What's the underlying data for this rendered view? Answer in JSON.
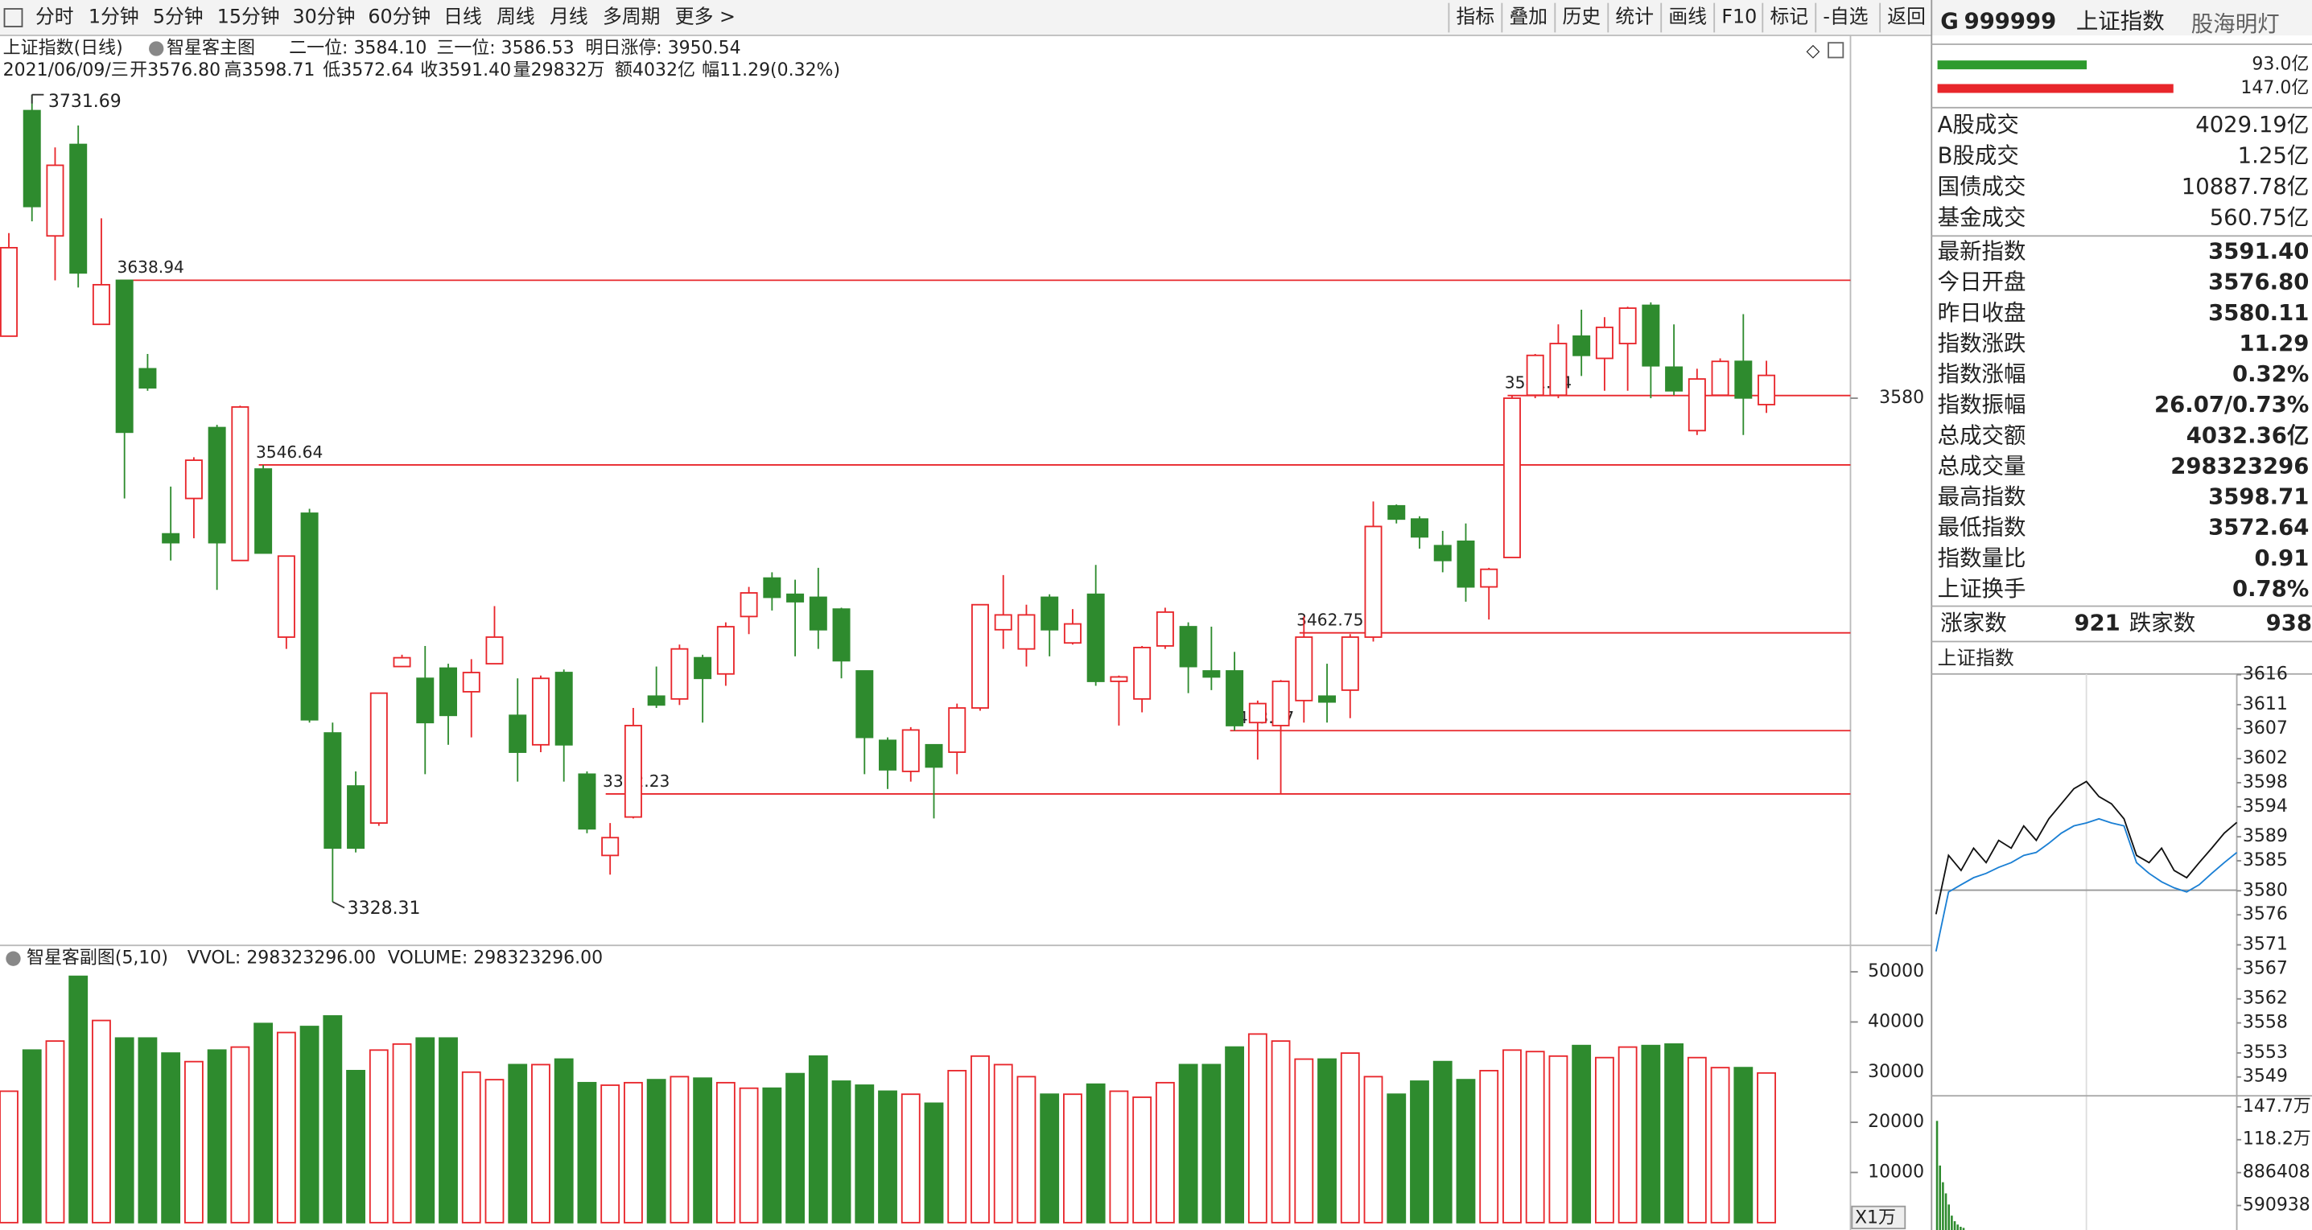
{
  "toolbar": {
    "left": [
      "分时",
      "1分钟",
      "5分钟",
      "15分钟",
      "30分钟",
      "60分钟",
      "日线",
      "周线",
      "月线",
      "多周期",
      "更多 >"
    ],
    "active": 6,
    "right": [
      "指标",
      "叠加",
      "历史",
      "统计",
      "画线",
      "F10",
      "标记",
      "-自选",
      "返回"
    ]
  },
  "header": {
    "line1": [
      {
        "text": "上证指数(日线)",
        "color": "#1460c8"
      },
      {
        "text": "智星客主图",
        "color": "#222222"
      },
      {
        "text": "二一位: 3584.10",
        "color": "#e60000"
      },
      {
        "text": "三一位: 3586.53",
        "color": "#e60000"
      },
      {
        "text": "明日涨停: 3950.54",
        "color": "#e60000"
      }
    ],
    "line2": [
      {
        "text": "2021/06/09/三",
        "color": "#222222"
      },
      {
        "text": "开3576.80",
        "color": "#009900"
      },
      {
        "text": "高3598.71",
        "color": "#e60000"
      },
      {
        "text": "低3572.64",
        "color": "#009900"
      },
      {
        "text": "收3591.40",
        "color": "#e60000"
      },
      {
        "text": "量29832万",
        "color": "#222222"
      },
      {
        "text": "额4032亿",
        "color": "#222222"
      },
      {
        "text": "幅11.29(0.32%)",
        "color": "#e60000"
      }
    ]
  },
  "chart_data": [
    {
      "type": "candlestick",
      "up_color": "#e8262b",
      "down_color": "#2e8b2e",
      "ylim": [
        3307.3,
        3761.3
      ],
      "yticks": [
        3580
      ],
      "open": [
        3611.0,
        3723.7,
        3661.1,
        3706.8,
        3616.9,
        3638.9,
        3594.7,
        3512.2,
        3529.9,
        3565.3,
        3498.9,
        3544.6,
        3460.6,
        3522.5,
        3412.7,
        3386.2,
        3367.7,
        3445.9,
        3440.0,
        3445.1,
        3433.3,
        3447.3,
        3421.5,
        3406.8,
        3442.9,
        3392.1,
        3351.5,
        3370.7,
        3431.1,
        3429.7,
        3450.3,
        3442.2,
        3470.9,
        3490.1,
        3482.0,
        3480.5,
        3474.6,
        3443.7,
        3409.0,
        3393.5,
        3406.8,
        3403.1,
        3425.2,
        3464.3,
        3454.7,
        3480.5,
        3457.7,
        3482.0,
        3438.5,
        3429.7,
        3456.2,
        3465.8,
        3443.7,
        3443.7,
        3417.9,
        3416.4,
        3428.9,
        3431.1,
        3434.1,
        3460.6,
        3526.2,
        3519.6,
        3506.3,
        3508.5,
        3485.7,
        3500.4,
        3581.5,
        3581.5,
        3611.0,
        3599.9,
        3607.3,
        3626.4,
        3595.5,
        3563.8,
        3581.5,
        3598.4,
        3576.8
      ],
      "high": [
        3662.5,
        3731.69,
        3705.3,
        3716.3,
        3669.9,
        3638.94,
        3602.1,
        3535.8,
        3550.5,
        3566.7,
        3576.3,
        3546.64,
        3501.1,
        3524.7,
        3417.9,
        3393.5,
        3432.6,
        3451.8,
        3456.2,
        3447.3,
        3449.6,
        3476.1,
        3440.0,
        3441.4,
        3444.4,
        3393.5,
        3367.7,
        3425.2,
        3445.9,
        3456.9,
        3451.8,
        3468.0,
        3485.7,
        3493.0,
        3489.3,
        3495.2,
        3475.3,
        3443.7,
        3410.5,
        3415.6,
        3406.8,
        3427.4,
        3476.8,
        3491.6,
        3476.8,
        3482.0,
        3474.6,
        3496.7,
        3441.4,
        3456.2,
        3475.3,
        3468.0,
        3465.8,
        3453.2,
        3428.9,
        3439.2,
        3470.9,
        3447.3,
        3462.1,
        3528.4,
        3526.9,
        3521.0,
        3513.7,
        3517.4,
        3495.2,
        3581.34,
        3602.1,
        3616.9,
        3624.2,
        3620.5,
        3625.7,
        3627.9,
        3616.9,
        3594.7,
        3599.9,
        3622.0,
        3598.71
      ],
      "low": [
        3611.0,
        3668.4,
        3638.9,
        3635.3,
        3616.9,
        3529.9,
        3583.7,
        3498.9,
        3510.0,
        3484.2,
        3498.9,
        3502.6,
        3454.7,
        3417.9,
        3328.31,
        3353.0,
        3366.3,
        3445.9,
        3392.1,
        3406.8,
        3410.5,
        3447.3,
        3388.4,
        3403.1,
        3388.4,
        3362.6,
        3341.9,
        3370.0,
        3425.2,
        3426.7,
        3417.9,
        3436.3,
        3462.1,
        3473.9,
        3451.0,
        3454.7,
        3440.0,
        3392.1,
        3384.7,
        3388.4,
        3370.0,
        3392.1,
        3423.8,
        3454.7,
        3445.9,
        3451.0,
        3456.9,
        3436.3,
        3416.4,
        3423.0,
        3454.7,
        3432.6,
        3434.1,
        3413.87,
        3399.4,
        3382.5,
        3417.9,
        3417.9,
        3420.1,
        3458.4,
        3517.4,
        3504.8,
        3493.0,
        3478.3,
        3469.4,
        3500.4,
        3580.0,
        3580.0,
        3591.1,
        3583.7,
        3583.7,
        3580.0,
        3581.5,
        3561.6,
        3581.5,
        3561.6,
        3572.64
      ],
      "close": [
        3655.2,
        3675.8,
        3696.4,
        3642.6,
        3636.7,
        3563.0,
        3585.2,
        3507.8,
        3549.0,
        3507.8,
        3575.6,
        3502.6,
        3501.1,
        3419.3,
        3355.2,
        3355.2,
        3432.6,
        3450.3,
        3417.9,
        3421.5,
        3442.9,
        3460.6,
        3403.1,
        3440.0,
        3406.8,
        3364.8,
        3360.4,
        3416.4,
        3426.7,
        3454.7,
        3440.0,
        3465.8,
        3482.7,
        3480.5,
        3478.3,
        3464.3,
        3448.8,
        3410.5,
        3394.3,
        3414.2,
        3395.7,
        3425.2,
        3476.8,
        3471.7,
        3471.7,
        3464.3,
        3467.2,
        3438.5,
        3440.7,
        3455.4,
        3473.1,
        3445.9,
        3440.7,
        3416.4,
        3427.4,
        3438.5,
        3460.6,
        3428.2,
        3460.6,
        3515.9,
        3519.6,
        3510.7,
        3498.9,
        3485.7,
        3494.5,
        3580.0,
        3601.4,
        3607.3,
        3601.4,
        3615.4,
        3625.0,
        3596.2,
        3583.7,
        3589.6,
        3598.4,
        3580.11,
        3591.4
      ],
      "levels": [
        {
          "value": 3638.94,
          "start": 5
        },
        {
          "value": 3546.64,
          "start": 11
        },
        {
          "value": 3382.23,
          "start": 26
        },
        {
          "value": 3462.75,
          "start": 56
        },
        {
          "value": 3413.87,
          "start": 53
        },
        {
          "value": 3581.34,
          "start": 65
        }
      ],
      "level_color": "#e8262b"
    },
    {
      "type": "bar",
      "title": "智星客副图(5,10)",
      "vvol": "VVOL: 298323296.00",
      "volume": "VOLUME: 298323296.00",
      "unit": "X1万",
      "ylim": [
        0,
        54100
      ],
      "yticks": [
        10000,
        20000,
        30000,
        40000,
        50000
      ],
      "values": [
        26200,
        34400,
        36200,
        49100,
        40300,
        36800,
        36800,
        33800,
        32100,
        34400,
        35000,
        39700,
        37900,
        39100,
        41200,
        30300,
        34400,
        35600,
        36800,
        36800,
        30000,
        28500,
        31500,
        31500,
        32600,
        27900,
        27400,
        27900,
        28500,
        29100,
        28800,
        27900,
        26800,
        26800,
        29700,
        33200,
        28200,
        27400,
        26200,
        25600,
        23800,
        30300,
        33200,
        31500,
        29100,
        25600,
        25600,
        27600,
        26200,
        25000,
        27900,
        31500,
        31500,
        35000,
        37600,
        36200,
        32600,
        32600,
        33800,
        29100,
        25600,
        28200,
        32100,
        28500,
        30300,
        34400,
        34100,
        33200,
        35300,
        32900,
        35000,
        35300,
        35600,
        32900,
        30900,
        30900,
        29832
      ]
    },
    {
      "type": "line",
      "title": "上证指数",
      "ylim": [
        3546.6,
        3616.6
      ],
      "baseline": 3580.11,
      "yticks": [
        3616,
        3611,
        3607,
        3602,
        3598,
        3594,
        3589,
        3585,
        3580,
        3576,
        3571,
        3567,
        3562,
        3558,
        3553,
        3549
      ],
      "up_color": "#e60000",
      "down_color": "#009900",
      "series": [
        {
          "color": "#111111",
          "values": [
            3576.1,
            3585.9,
            3583.4,
            3587.1,
            3584.7,
            3588.4,
            3587.1,
            3590.8,
            3588.4,
            3592.0,
            3594.5,
            3597.0,
            3598.2,
            3595.7,
            3594.5,
            3592.0,
            3585.9,
            3584.7,
            3587.1,
            3583.4,
            3582.2,
            3584.7,
            3587.1,
            3589.6,
            3591.4
          ]
        },
        {
          "color": "#1a7fd4",
          "values": [
            3569.9,
            3579.8,
            3581.0,
            3582.2,
            3582.9,
            3583.9,
            3584.7,
            3585.9,
            3586.4,
            3587.9,
            3589.6,
            3590.8,
            3591.3,
            3592.0,
            3591.3,
            3590.8,
            3584.7,
            3582.9,
            3581.5,
            3580.5,
            3579.8,
            3581.0,
            3582.9,
            3584.7,
            3586.4
          ]
        }
      ]
    },
    {
      "type": "bar",
      "color": "#2e8b2e",
      "ylim": [
        371000,
        1549900
      ],
      "yticks": [
        {
          "value": 1477000,
          "label": "147.7万"
        },
        {
          "value": 1182000,
          "label": "118.2万"
        },
        886408,
        590938
      ],
      "values": [
        1351000,
        950000,
        800000,
        700000,
        600000,
        500000,
        450000,
        420000,
        400000,
        390000
      ]
    },
    {
      "type": "hbar",
      "xlim": [
        0,
        147
      ],
      "values": [
        93.0,
        147.0
      ],
      "value_labels": [
        "93.0亿",
        "147.0亿"
      ],
      "colors": [
        "#2e9b2e",
        "#e8262b"
      ]
    }
  ],
  "sidebar": {
    "prefix": "G",
    "code": "999999",
    "name": "上证指数",
    "watermark": "股海明灯",
    "turnover": [
      {
        "label": "A股成交",
        "value": "4029.19亿"
      },
      {
        "label": "B股成交",
        "value": "1.25亿"
      },
      {
        "label": "国债成交",
        "value": "10887.78亿"
      },
      {
        "label": "基金成交",
        "value": "560.75亿"
      }
    ],
    "quote": [
      {
        "label": "最新指数",
        "value": "3591.40",
        "color": "#e60000"
      },
      {
        "label": "今日开盘",
        "value": "3576.80",
        "color": "#009900"
      },
      {
        "label": "昨日收盘",
        "value": "3580.11",
        "color": "#111111"
      },
      {
        "label": "指数涨跌",
        "value": "11.29",
        "color": "#e60000"
      },
      {
        "label": "指数涨幅",
        "value": "0.32%",
        "color": "#e60000"
      },
      {
        "label": "指数振幅",
        "value": "26.07/0.73%",
        "color": "#111111"
      },
      {
        "label": "总成交额",
        "value": "4032.36亿",
        "color": "#111111"
      },
      {
        "label": "总成交量",
        "value": "298323296",
        "color": "#111111"
      },
      {
        "label": "最高指数",
        "value": "3598.71",
        "color": "#e60000"
      },
      {
        "label": "最低指数",
        "value": "3572.64",
        "color": "#009900"
      },
      {
        "label": "指数量比",
        "value": "0.91",
        "color": "#009900"
      },
      {
        "label": "上证换手",
        "value": "0.78%",
        "color": "#111111"
      }
    ],
    "breadth": {
      "up_label": "涨家数",
      "up": "921",
      "down_label": "跌家数",
      "down": "938"
    }
  }
}
